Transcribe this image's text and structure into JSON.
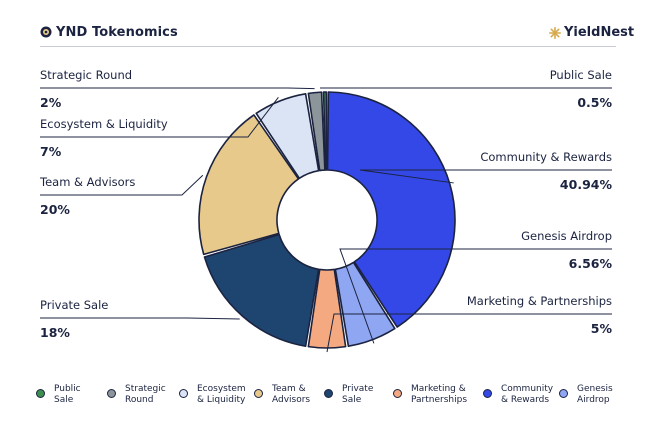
{
  "header": {
    "title": "YND Tokenomics",
    "brand": "YieldNest"
  },
  "chart_data": {
    "type": "pie",
    "style": "donut",
    "categories": [
      "Public Sale",
      "Strategic Round",
      "Ecosystem & Liquidity",
      "Team & Advisors",
      "Private Sale",
      "Marketing & Partnerships",
      "Community & Rewards",
      "Genesis Airdrop"
    ],
    "values": [
      0.5,
      2,
      7,
      20,
      18,
      5,
      40.94,
      6.56
    ],
    "value_labels": [
      "0.5%",
      "2%",
      "7%",
      "20%",
      "18%",
      "5%",
      "40.94%",
      "6.56%"
    ],
    "colors": [
      "#3c8f4c",
      "#8c9599",
      "#dbe4f5",
      "#e8c98c",
      "#1e4470",
      "#f4a980",
      "#3448e8",
      "#8fa6f2"
    ],
    "legend_labels": [
      [
        "Public",
        "Sale"
      ],
      [
        "Strategic",
        "Round"
      ],
      [
        "Ecosystem",
        "& Liquidity"
      ],
      [
        "Team &",
        "Advisors"
      ],
      [
        "Private",
        "Sale"
      ],
      [
        "Marketing &",
        "Partnerships"
      ],
      [
        "Community",
        "& Rewards"
      ],
      [
        "Genesis",
        "Airdrop"
      ]
    ],
    "legend_position": "bottom"
  }
}
